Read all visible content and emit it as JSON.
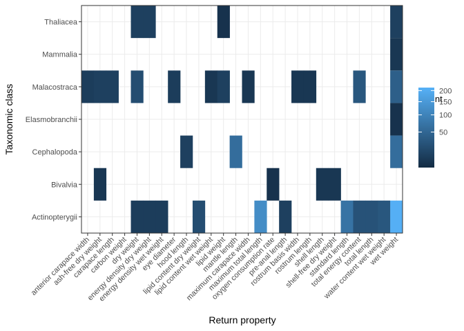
{
  "chart_data": {
    "type": "heatmap",
    "xlabel": "Return property",
    "ylabel": "Taxonomic class",
    "x_categories": [
      "anterior carapace width",
      "ash-free dry weight",
      "carapace length",
      "carbon weight",
      "dry weight",
      "energy density dry weight",
      "energy density wet weight",
      "eye diameter",
      "hood length",
      "lipid content dry weight",
      "lipid content wet weight",
      "lipid weight",
      "mantle length",
      "maximum carapace width",
      "maximum total length",
      "oxygen consumption rate",
      "pre-anal length",
      "rostrum basis width",
      "rostrum length",
      "shell length",
      "shell-free dry weight",
      "standard length",
      "total energy content",
      "total length",
      "water content wet weight",
      "wet weight"
    ],
    "y_categories": [
      "Actinopterygii",
      "Bivalvia",
      "Cephalopoda",
      "Elasmobranchii",
      "Malacostraca",
      "Mammalia",
      "Thaliacea"
    ],
    "cells": [
      {
        "x": "dry weight",
        "y": "Thaliacea",
        "count": 10
      },
      {
        "x": "energy density dry weight",
        "y": "Thaliacea",
        "count": 10
      },
      {
        "x": "lipid weight",
        "y": "Thaliacea",
        "count": 3
      },
      {
        "x": "wet weight",
        "y": "Thaliacea",
        "count": 10
      },
      {
        "x": "wet weight",
        "y": "Mammalia",
        "count": 5
      },
      {
        "x": "anterior carapace width",
        "y": "Malacostraca",
        "count": 8
      },
      {
        "x": "ash-free dry weight",
        "y": "Malacostraca",
        "count": 10
      },
      {
        "x": "carapace length",
        "y": "Malacostraca",
        "count": 10
      },
      {
        "x": "dry weight",
        "y": "Malacostraca",
        "count": 20
      },
      {
        "x": "eye diameter",
        "y": "Malacostraca",
        "count": 8
      },
      {
        "x": "lipid content wet weight",
        "y": "Malacostraca",
        "count": 5
      },
      {
        "x": "lipid weight",
        "y": "Malacostraca",
        "count": 10
      },
      {
        "x": "maximum carapace width",
        "y": "Malacostraca",
        "count": 5
      },
      {
        "x": "rostrum basis width",
        "y": "Malacostraca",
        "count": 5
      },
      {
        "x": "rostrum length",
        "y": "Malacostraca",
        "count": 5
      },
      {
        "x": "total energy content",
        "y": "Malacostraca",
        "count": 30
      },
      {
        "x": "wet weight",
        "y": "Malacostraca",
        "count": 40
      },
      {
        "x": "wet weight",
        "y": "Elasmobranchii",
        "count": 3
      },
      {
        "x": "hood length",
        "y": "Cephalopoda",
        "count": 10
      },
      {
        "x": "mantle length",
        "y": "Cephalopoda",
        "count": 60
      },
      {
        "x": "wet weight",
        "y": "Cephalopoda",
        "count": 60
      },
      {
        "x": "ash-free dry weight",
        "y": "Bivalvia",
        "count": 5
      },
      {
        "x": "oxygen consumption rate",
        "y": "Bivalvia",
        "count": 3
      },
      {
        "x": "shell length",
        "y": "Bivalvia",
        "count": 5
      },
      {
        "x": "shell-free dry weight",
        "y": "Bivalvia",
        "count": 5
      },
      {
        "x": "dry weight",
        "y": "Actinopterygii",
        "count": 8
      },
      {
        "x": "energy density dry weight",
        "y": "Actinopterygii",
        "count": 8
      },
      {
        "x": "energy density wet weight",
        "y": "Actinopterygii",
        "count": 8
      },
      {
        "x": "lipid content dry weight",
        "y": "Actinopterygii",
        "count": 20
      },
      {
        "x": "maximum total length",
        "y": "Actinopterygii",
        "count": 120
      },
      {
        "x": "pre-anal length",
        "y": "Actinopterygii",
        "count": 10
      },
      {
        "x": "standard length",
        "y": "Actinopterygii",
        "count": 70
      },
      {
        "x": "total energy content",
        "y": "Actinopterygii",
        "count": 25
      },
      {
        "x": "total length",
        "y": "Actinopterygii",
        "count": 25
      },
      {
        "x": "water content wet weight",
        "y": "Actinopterygii",
        "count": 30
      },
      {
        "x": "wet weight",
        "y": "Actinopterygii",
        "count": 210
      }
    ],
    "legend": {
      "title": "Count",
      "breaks": [
        50,
        100,
        150,
        200
      ],
      "break_labels": [
        "50",
        "100",
        "150",
        "200"
      ],
      "min": 1,
      "max": 215,
      "scale": "sqrt",
      "low_color": "#132B43",
      "high_color": "#56B1F7",
      "position": "right"
    },
    "grid": true
  }
}
